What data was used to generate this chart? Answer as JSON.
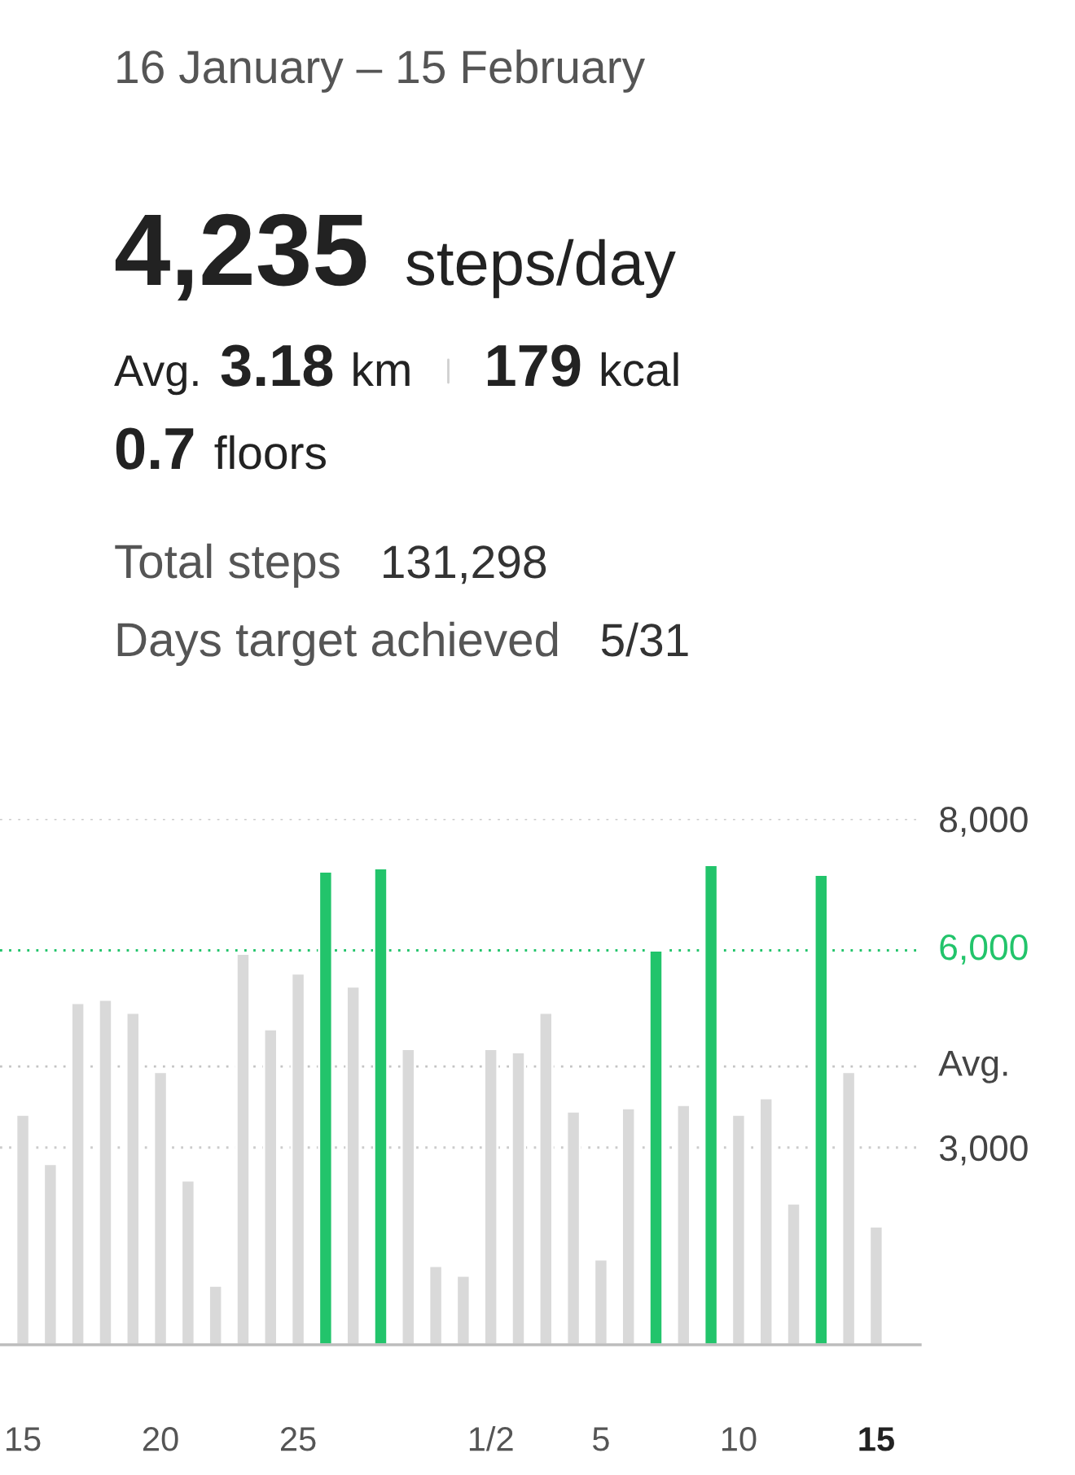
{
  "chart_data": {
    "type": "bar",
    "title": "16 January – 15 February",
    "annotations": [
      "4,235",
      "steps/day",
      "Avg.",
      "3.18",
      "km",
      "179",
      "kcal",
      "0.7",
      "floors",
      "Total steps",
      "131,298",
      "Days target achieved",
      "5/31"
    ],
    "categories": [
      "15",
      null,
      null,
      null,
      null,
      "20",
      null,
      null,
      null,
      null,
      "25",
      null,
      null,
      null,
      null,
      null,
      null,
      "1/2",
      null,
      null,
      null,
      "5",
      null,
      null,
      null,
      null,
      "10",
      null,
      null,
      null,
      null,
      "15"
    ],
    "values": [
      3500,
      2750,
      5200,
      5250,
      5050,
      4150,
      2500,
      900,
      5950,
      4800,
      5650,
      7200,
      5450,
      7250,
      4500,
      1200,
      1050,
      4500,
      4450,
      5050,
      3550,
      1300,
      3600,
      6000,
      3650,
      7300,
      3500,
      3750,
      2150,
      7150,
      4150,
      1800
    ],
    "colors": [
      "#d9d9d9",
      "#d9d9d9",
      "#d9d9d9",
      "#d9d9d9",
      "#d9d9d9",
      "#d9d9d9",
      "#d9d9d9",
      "#d9d9d9",
      "#d9d9d9",
      "#d9d9d9",
      "#d9d9d9",
      "#22c46b",
      "#d9d9d9",
      "#22c46b",
      "#d9d9d9",
      "#d9d9d9",
      "#d9d9d9",
      "#d9d9d9",
      "#d9d9d9",
      "#d9d9d9",
      "#d9d9d9",
      "#d9d9d9",
      "#d9d9d9",
      "#22c46b",
      "#d9d9d9",
      "#22c46b",
      "#d9d9d9",
      "#d9d9d9",
      "#d9d9d9",
      "#22c46b",
      "#d9d9d9",
      "#d9d9d9"
    ],
    "ylim": [
      0,
      8000
    ],
    "yticks": [
      {
        "value": 3000,
        "label": "3,000"
      },
      {
        "value": 8000,
        "label": "8,000"
      }
    ],
    "grid": "y",
    "ref_lines": [
      {
        "axis": "y",
        "value": 6000,
        "label": "6,000",
        "color": "#22c46b",
        "line_style": "dotted"
      },
      {
        "axis": "y",
        "value": 4235,
        "label": "Avg.",
        "color": "#c4c4c4",
        "line_style": "dotted"
      }
    ]
  }
}
